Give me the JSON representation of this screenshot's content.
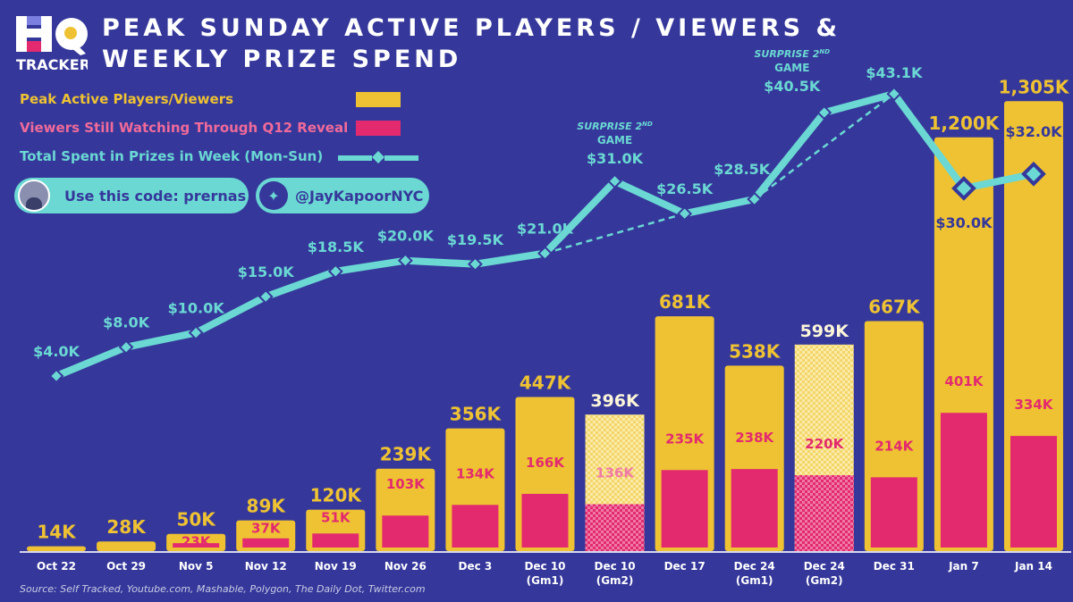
{
  "logo": {
    "text": "HQ",
    "subtitle": "TRACKER"
  },
  "title_line1": "PEAK SUNDAY ACTIVE PLAYERS / VIEWERS &",
  "title_line2": "WEEKLY PRIZE SPEND",
  "promo": {
    "code_label": "Use this code: prernas",
    "twitter_handle": "@JayKapoorNYC"
  },
  "source": "Source: Self Tracked, Youtube.com, Mashable, Polygon, The Daily Dot, Twitter.com",
  "colors": {
    "background": "#35389a",
    "peak": "#eec232",
    "q12": "#e32a6f",
    "prize": "#6bd8d4"
  },
  "chart_data": {
    "type": "bar+line",
    "title": "PEAK SUNDAY ACTIVE PLAYERS / VIEWERS & WEEKLY PRIZE SPEND",
    "legend": [
      "Peak Active Players/Viewers",
      "Viewers Still Watching Through Q12 Reveal",
      "Total Spent in Prizes in Week (Mon-Sun)"
    ],
    "legend_position": "top-left",
    "grid": false,
    "categories": [
      "Oct 22",
      "Oct 29",
      "Nov 5",
      "Nov 12",
      "Nov 19",
      "Nov 26",
      "Dec 3",
      "Dec 10\n(Gm1)",
      "Dec 10\n(Gm2)",
      "Dec 17",
      "Dec 24\n(Gm1)",
      "Dec 24\n(Gm2)",
      "Dec 31",
      "Jan 7",
      "Jan 14"
    ],
    "category_labels": [
      [
        "Oct 22",
        ""
      ],
      [
        "Oct 29",
        ""
      ],
      [
        "Nov 5",
        ""
      ],
      [
        "Nov 12",
        ""
      ],
      [
        "Nov 19",
        ""
      ],
      [
        "Nov 26",
        ""
      ],
      [
        "Dec 3",
        ""
      ],
      [
        "Dec 10",
        "(Gm1)"
      ],
      [
        "Dec 10",
        "(Gm2)"
      ],
      [
        "Dec 17",
        ""
      ],
      [
        "Dec 24",
        "(Gm1)"
      ],
      [
        "Dec 24",
        "(Gm2)"
      ],
      [
        "Dec 31",
        ""
      ],
      [
        "Jan 7",
        ""
      ],
      [
        "Jan 14",
        ""
      ]
    ],
    "series": [
      {
        "name": "Peak Active Players/Viewers",
        "type": "bar",
        "unit": "K",
        "values": [
          14,
          28,
          50,
          89,
          120,
          239,
          356,
          447,
          396,
          681,
          538,
          599,
          667,
          1200,
          1305
        ],
        "labels": [
          "14K",
          "28K",
          "50K",
          "89K",
          "120K",
          "239K",
          "356K",
          "447K",
          "396K",
          "681K",
          "538K",
          "599K",
          "667K",
          "1,200K",
          "1,305K"
        ]
      },
      {
        "name": "Viewers Still Watching Through Q12 Reveal",
        "type": "bar",
        "unit": "K",
        "values": [
          null,
          null,
          23,
          37,
          51,
          103,
          134,
          166,
          136,
          235,
          238,
          220,
          214,
          401,
          334
        ],
        "labels": [
          "",
          "",
          "23K",
          "37K",
          "51K",
          "103K",
          "134K",
          "166K",
          "136K",
          "235K",
          "238K",
          "220K",
          "214K",
          "401K",
          "334K"
        ]
      },
      {
        "name": "Total Spent in Prizes in Week (Mon-Sun)",
        "type": "line",
        "unit": "$K",
        "values": [
          4.0,
          8.0,
          10.0,
          15.0,
          18.5,
          20.0,
          19.5,
          21.0,
          31.0,
          26.5,
          28.5,
          40.5,
          43.1,
          30.0,
          32.0
        ],
        "labels": [
          "$4.0K",
          "$8.0K",
          "$10.0K",
          "$15.0K",
          "$18.5K",
          "$20.0K",
          "$19.5K",
          "$21.0K",
          "$31.0K",
          "$26.5K",
          "$28.5K",
          "$40.5K",
          "$43.1K",
          "$30.0K",
          "$32.0K"
        ],
        "dashed_segments": [
          [
            "Dec 10\n(Gm1)",
            "Dec 17"
          ],
          [
            "Dec 24\n(Gm1)",
            "Dec 31"
          ]
        ]
      }
    ],
    "patterned_categories": [
      "Dec 10\n(Gm2)",
      "Dec 24\n(Gm2)"
    ],
    "annotations": [
      {
        "category": "Dec 10\n(Gm2)",
        "text_line1": "SURPRISE 2",
        "superscript": "ND",
        "text_line2": "GAME"
      },
      {
        "category": "Dec 24\n(Gm2)",
        "text_line1": "SURPRISE 2",
        "superscript": "ND",
        "text_line2": "GAME"
      }
    ]
  }
}
